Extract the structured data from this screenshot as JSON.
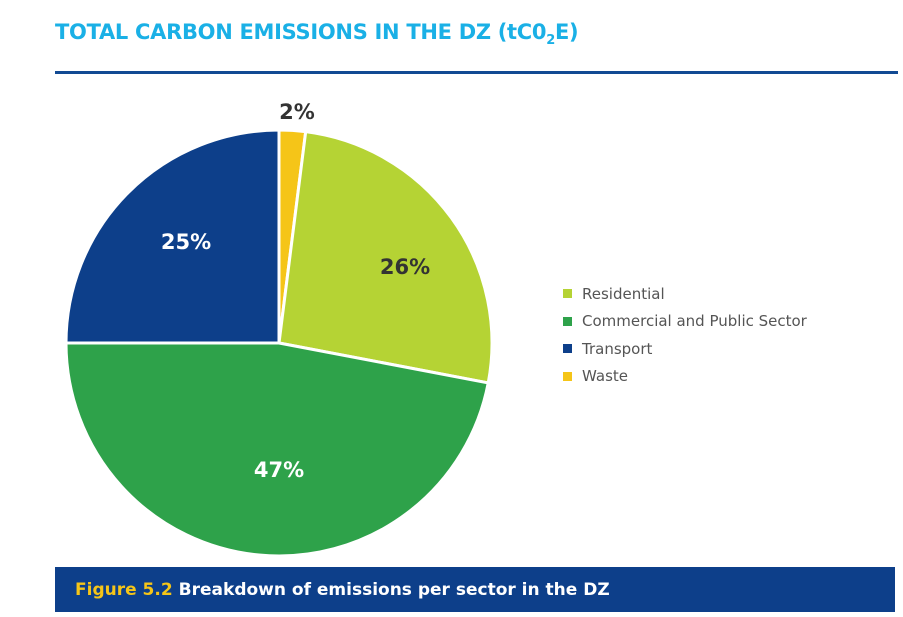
{
  "title": {
    "main": "TOTAL CARBON EMISSIONS IN THE DZ (tC0",
    "sub": "2",
    "end": "E)"
  },
  "chart_data": {
    "type": "pie",
    "title": "TOTAL CARBON EMISSIONS IN THE DZ (tC02E)",
    "start": "12 o'clock, clockwise",
    "legend_position": "right",
    "slices": [
      {
        "name": "Waste",
        "value": 2,
        "label": "2%",
        "color": "#f5c518",
        "label_color": "#333333"
      },
      {
        "name": "Residential",
        "value": 26,
        "label": "26%",
        "color": "#b5d334",
        "label_color": "#333333"
      },
      {
        "name": "Commercial and Public Sector",
        "value": 47,
        "label": "47%",
        "color": "#2ea24a",
        "label_color": "#ffffff"
      },
      {
        "name": "Transport",
        "value": 25,
        "label": "25%",
        "color": "#0d3f8a",
        "label_color": "#ffffff"
      }
    ],
    "legend_order": [
      "Residential",
      "Commercial and Public Sector",
      "Transport",
      "Waste"
    ]
  },
  "caption": {
    "figure": "Figure 5.2",
    "text": "Breakdown of emissions per sector in the DZ"
  }
}
